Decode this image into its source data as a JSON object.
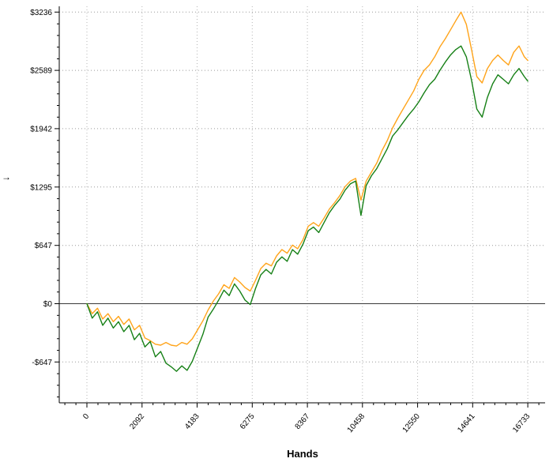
{
  "chart_data": {
    "type": "line",
    "title": "",
    "xlabel": "Hands",
    "ylabel_fragment": "→",
    "grid": true,
    "legend_position": "none",
    "background": "#ffffff",
    "axis_color": "#000000",
    "gridline_color": "#9a9a9a",
    "vertical_gridline_color": "#b5b5b5",
    "zero_line_color": "#3a3a3a",
    "xlim": [
      -1050,
      17390
    ],
    "ylim": [
      -1100,
      3300
    ],
    "xticks": [
      {
        "label": "0",
        "value": 0
      },
      {
        "label": "2092",
        "value": 2092
      },
      {
        "label": "4183",
        "value": 4183
      },
      {
        "label": "6275",
        "value": 6275
      },
      {
        "label": "8367",
        "value": 8367
      },
      {
        "label": "10458",
        "value": 10458
      },
      {
        "label": "12550",
        "value": 12550
      },
      {
        "label": "14641",
        "value": 14641
      },
      {
        "label": "16733",
        "value": 16733
      }
    ],
    "yticks": [
      {
        "label": "$3236",
        "value": 3236
      },
      {
        "label": "$2589",
        "value": 2589
      },
      {
        "label": "$1942",
        "value": 1942
      },
      {
        "label": "$1295",
        "value": 1295
      },
      {
        "label": "$647",
        "value": 647
      },
      {
        "label": "$0",
        "value": 0
      },
      {
        "label": "-$647",
        "value": -647
      }
    ],
    "x": [
      0,
      200,
      400,
      600,
      800,
      1000,
      1200,
      1400,
      1600,
      1800,
      2000,
      2200,
      2400,
      2600,
      2800,
      3000,
      3200,
      3400,
      3600,
      3800,
      4000,
      4200,
      4400,
      4600,
      4800,
      5000,
      5200,
      5400,
      5600,
      5800,
      6000,
      6200,
      6400,
      6600,
      6800,
      7000,
      7200,
      7400,
      7600,
      7800,
      8000,
      8200,
      8400,
      8600,
      8800,
      9000,
      9200,
      9400,
      9600,
      9800,
      10000,
      10200,
      10400,
      10600,
      10800,
      11000,
      11200,
      11400,
      11600,
      11800,
      12000,
      12200,
      12400,
      12600,
      12800,
      13000,
      13200,
      13400,
      13600,
      13800,
      14000,
      14200,
      14400,
      14600,
      14800,
      15000,
      15200,
      15400,
      15600,
      15800,
      16000,
      16200,
      16400,
      16600,
      16733
    ],
    "series": [
      {
        "name": "orange-series",
        "color": "#ffa41b",
        "values": [
          0,
          -110,
          -50,
          -170,
          -110,
          -200,
          -140,
          -230,
          -170,
          -290,
          -240,
          -380,
          -410,
          -450,
          -460,
          -430,
          -460,
          -470,
          -430,
          -450,
          -390,
          -290,
          -190,
          -70,
          30,
          110,
          210,
          170,
          290,
          240,
          180,
          140,
          260,
          390,
          450,
          420,
          530,
          600,
          560,
          650,
          610,
          710,
          860,
          900,
          860,
          950,
          1050,
          1120,
          1200,
          1300,
          1360,
          1390,
          1150,
          1360,
          1460,
          1560,
          1700,
          1810,
          1950,
          2060,
          2160,
          2260,
          2360,
          2490,
          2590,
          2650,
          2740,
          2850,
          2940,
          3040,
          3140,
          3236,
          3100,
          2820,
          2520,
          2450,
          2610,
          2700,
          2760,
          2700,
          2650,
          2790,
          2860,
          2740,
          2700
        ]
      },
      {
        "name": "green-series",
        "color": "#168016",
        "values": [
          0,
          -160,
          -90,
          -240,
          -160,
          -270,
          -200,
          -310,
          -240,
          -400,
          -330,
          -480,
          -420,
          -590,
          -530,
          -660,
          -700,
          -750,
          -690,
          -740,
          -640,
          -490,
          -340,
          -150,
          -60,
          40,
          150,
          90,
          220,
          140,
          40,
          -10,
          170,
          320,
          380,
          330,
          460,
          520,
          470,
          600,
          550,
          660,
          810,
          850,
          790,
          900,
          1010,
          1090,
          1160,
          1260,
          1330,
          1360,
          980,
          1310,
          1420,
          1500,
          1610,
          1720,
          1860,
          1930,
          2010,
          2090,
          2160,
          2240,
          2340,
          2430,
          2490,
          2590,
          2680,
          2760,
          2820,
          2860,
          2740,
          2480,
          2160,
          2070,
          2290,
          2440,
          2540,
          2490,
          2440,
          2540,
          2610,
          2520,
          2470
        ]
      }
    ]
  }
}
